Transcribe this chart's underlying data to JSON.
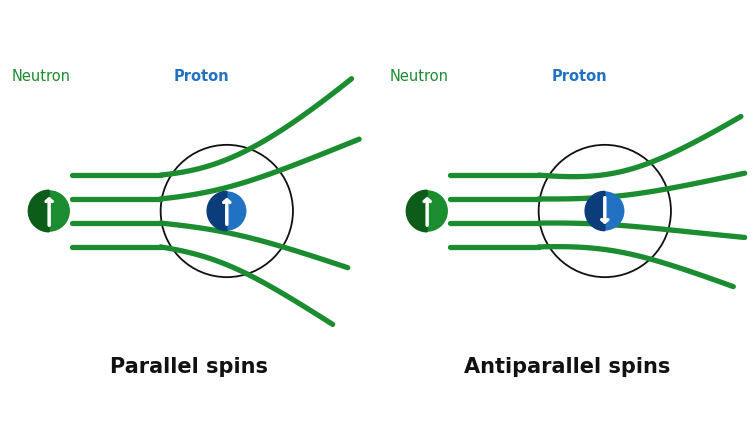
{
  "bg_color": "#ffffff",
  "green": "#1b8c30",
  "blue": "#2272c3",
  "black": "#111111",
  "beam_lw": 3.8,
  "cap_lw": 3.8,
  "neutron_text": "Neutron",
  "proton_text": "Proton",
  "parallel_text": "Parallel spins",
  "antiparallel_text": "Antiparallel spins",
  "font_label": 10.5,
  "font_caption": 15
}
